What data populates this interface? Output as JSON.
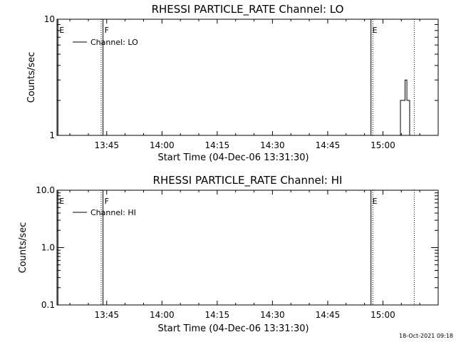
{
  "timestamp": "18-Oct-2021 09:18",
  "chart_data": [
    {
      "type": "line",
      "title": "RHESSI PARTICLE_RATE Channel: LO",
      "xlabel": "Start Time (04-Dec-06 13:31:30)",
      "ylabel": "Counts/sec",
      "yscale": "log",
      "ylim": [
        1,
        10
      ],
      "yticks": [
        {
          "v": 1,
          "label": "1"
        },
        {
          "v": 10,
          "label": "10"
        }
      ],
      "xlim": [
        "13:31:30",
        "15:15:00"
      ],
      "xticks": [
        "13:45",
        "14:00",
        "14:15",
        "14:30",
        "14:45",
        "15:00"
      ],
      "legend": "top-left",
      "series": [
        {
          "name": "Channel: LO",
          "x": [
            "15:04:30",
            "15:04:45",
            "15:05:00",
            "15:05:30",
            "15:06:00",
            "15:06:30",
            "15:07:00",
            "15:07:15",
            "15:08:00"
          ],
          "y": [
            1.0,
            2.0,
            2.0,
            2.0,
            3.0,
            2.0,
            2.0,
            1.0,
            1.0
          ]
        }
      ],
      "markers": [
        {
          "time": "13:31:45",
          "label": "E",
          "style": "solid"
        },
        {
          "time": "13:43:30",
          "label": "",
          "style": "dotted"
        },
        {
          "time": "13:44:00",
          "label": "F",
          "style": "solid"
        },
        {
          "time": "14:56:45",
          "label": "E",
          "style": "solid"
        },
        {
          "time": "14:57:15",
          "label": "",
          "style": "dotted"
        },
        {
          "time": "15:08:30",
          "label": "",
          "style": "dotted"
        }
      ]
    },
    {
      "type": "line",
      "title": "RHESSI PARTICLE_RATE Channel: HI",
      "xlabel": "Start Time (04-Dec-06 13:31:30)",
      "ylabel": "Counts/sec",
      "yscale": "log",
      "ylim": [
        0.1,
        10
      ],
      "yticks": [
        {
          "v": 0.1,
          "label": "0.1"
        },
        {
          "v": 1,
          "label": "1.0"
        },
        {
          "v": 10,
          "label": "10.0"
        }
      ],
      "xlim": [
        "13:31:30",
        "15:15:00"
      ],
      "xticks": [
        "13:45",
        "14:00",
        "14:15",
        "14:30",
        "14:45",
        "15:00"
      ],
      "legend": "top-left",
      "series": [
        {
          "name": "Channel: HI",
          "x": [],
          "y": []
        }
      ],
      "markers": [
        {
          "time": "13:31:45",
          "label": "E",
          "style": "solid"
        },
        {
          "time": "13:43:30",
          "label": "",
          "style": "dotted"
        },
        {
          "time": "13:44:00",
          "label": "F",
          "style": "solid"
        },
        {
          "time": "14:56:45",
          "label": "E",
          "style": "solid"
        },
        {
          "time": "14:57:15",
          "label": "",
          "style": "dotted"
        },
        {
          "time": "15:08:30",
          "label": "",
          "style": "dotted"
        }
      ]
    }
  ]
}
